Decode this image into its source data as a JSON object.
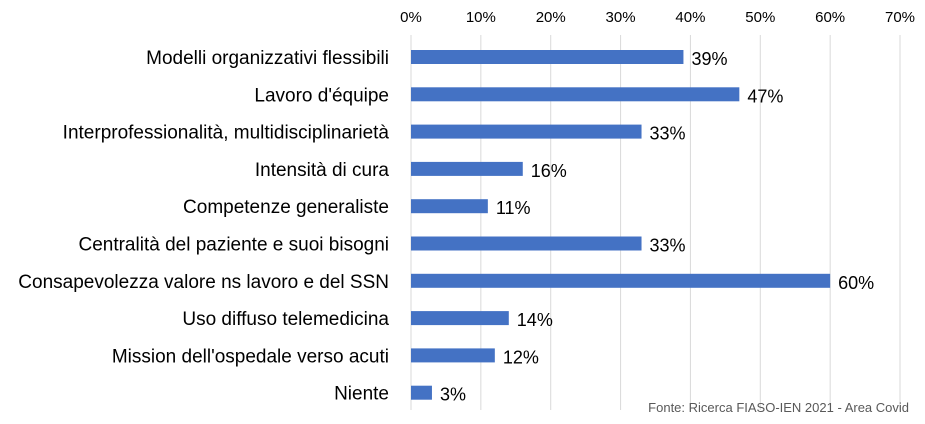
{
  "chart_data": {
    "type": "bar",
    "orientation": "horizontal",
    "categories": [
      "Modelli organizzativi flessibili",
      "Lavoro d'équipe",
      "Interprofessionalità, multidisciplinarietà",
      "Intensità di cura",
      "Competenze generaliste",
      "Centralità del paziente e suoi bisogni",
      "Consapevolezza valore ns lavoro e del SSN",
      "Uso diffuso telemedicina",
      "Mission dell'ospedale verso acuti",
      "Niente"
    ],
    "values": [
      39,
      47,
      33,
      16,
      11,
      33,
      60,
      14,
      12,
      3
    ],
    "value_labels": [
      "39%",
      "47%",
      "33%",
      "16%",
      "11%",
      "33%",
      "60%",
      "14%",
      "12%",
      "3%"
    ],
    "x_ticks": [
      0,
      10,
      20,
      30,
      40,
      50,
      60,
      70
    ],
    "x_tick_labels": [
      "0%",
      "10%",
      "20%",
      "30%",
      "40%",
      "50%",
      "60%",
      "70%"
    ],
    "xlim": [
      0,
      70
    ],
    "x_axis_position": "top",
    "grid": true,
    "legend": false,
    "bar_color": "#4472C4",
    "gridline_color": "#D9D9D9",
    "source": "Fonte: Ricerca FIASO-IEN 2021 - Area Covid"
  }
}
